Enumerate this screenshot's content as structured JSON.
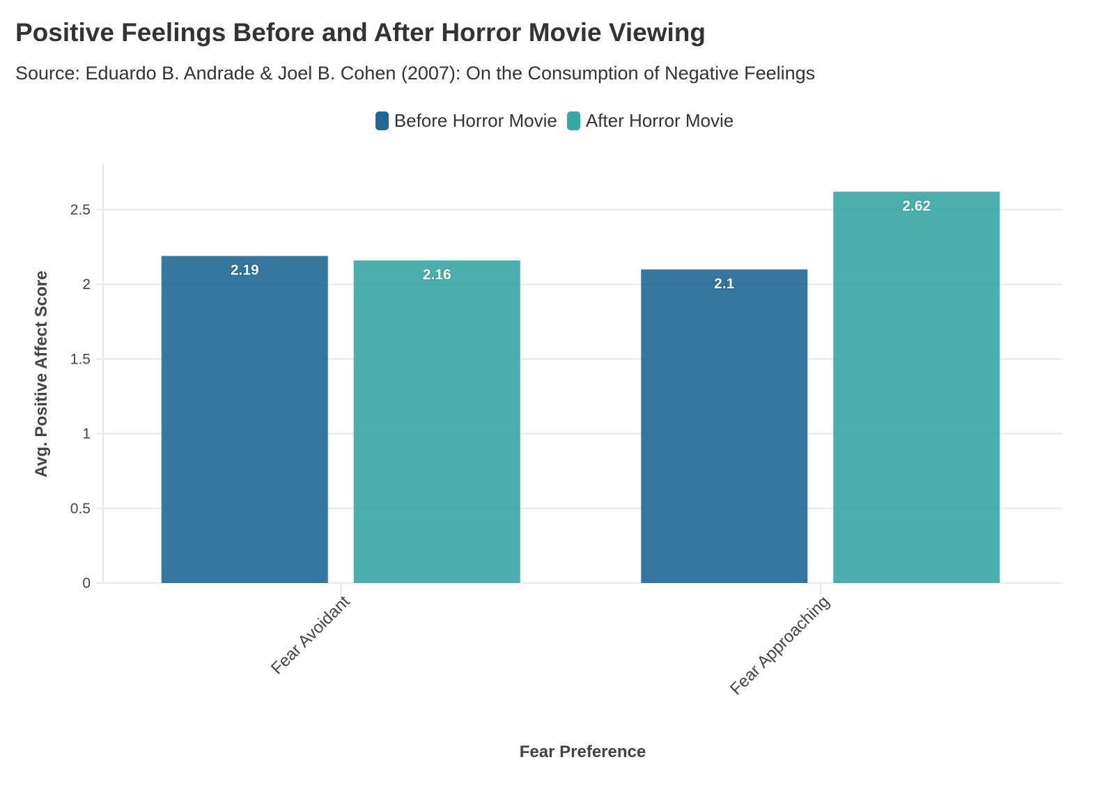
{
  "chart_data": {
    "type": "bar",
    "title": "Positive Feelings Before and After Horror Movie Viewing",
    "subtitle": "Source: Eduardo B. Andrade & Joel B. Cohen (2007): On the Consumption of Negative Feelings",
    "xlabel": "Fear Preference",
    "ylabel": "Avg. Positive Affect Score",
    "categories": [
      "Fear Avoidant",
      "Fear Approaching"
    ],
    "series": [
      {
        "name": "Before Horror Movie",
        "color": "#1f6894",
        "values": [
          2.19,
          2.1
        ],
        "labels": [
          "2.19",
          "2.1"
        ]
      },
      {
        "name": "After Horror Movie",
        "color": "#38a6a5",
        "values": [
          2.16,
          2.62
        ],
        "labels": [
          "2.16",
          "2.62"
        ]
      }
    ],
    "ylim": [
      0,
      2.8
    ],
    "yticks": [
      0,
      0.5,
      1,
      1.5,
      2,
      2.5
    ],
    "ytick_labels": [
      "0",
      "0.5",
      "1",
      "1.5",
      "2",
      "2.5"
    ],
    "grid": true,
    "legend_position": "top-center"
  }
}
